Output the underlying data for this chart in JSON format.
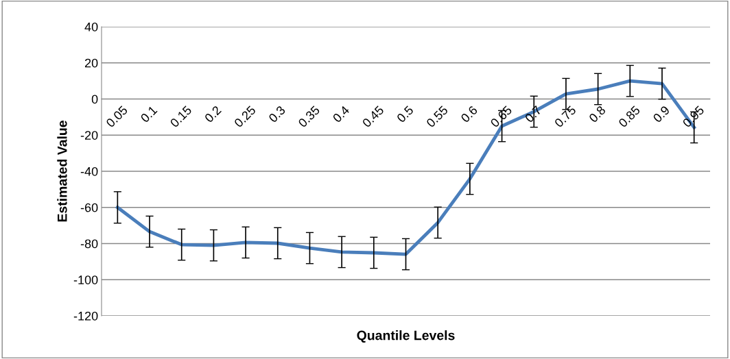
{
  "chart_data": {
    "type": "line",
    "xlabel": "Quantile Levels",
    "ylabel": "Estimated Value",
    "categories": [
      "0.05",
      "0.1",
      "0.15",
      "0.2",
      "0.25",
      "0.3",
      "0.35",
      "0.4",
      "0.45",
      "0.5",
      "0.55",
      "0.6",
      "0.65",
      "0.7",
      "0.75",
      "0.8",
      "0.85",
      "0.9",
      "0.95"
    ],
    "series": [
      {
        "color": "#4a7ebb",
        "values": [
          -60,
          -73.4,
          -80.6,
          -81,
          -79.4,
          -79.8,
          -82.5,
          -84.7,
          -85.1,
          -85.9,
          -68.4,
          -44.2,
          -15,
          -7,
          2.8,
          5.5,
          10,
          8.5,
          -15.7
        ],
        "errors": [
          8.7,
          8.6,
          8.6,
          8.6,
          8.6,
          8.6,
          8.6,
          8.6,
          8.6,
          8.6,
          8.6,
          8.6,
          8.6,
          8.6,
          8.6,
          8.6,
          8.6,
          8.6,
          8.6
        ]
      }
    ],
    "ylim": [
      -120,
      40
    ],
    "yticks": [
      -120,
      -100,
      -80,
      -60,
      -40,
      -20,
      0,
      20,
      40
    ],
    "grid": "y",
    "marker": "none",
    "line_style": "solid"
  }
}
